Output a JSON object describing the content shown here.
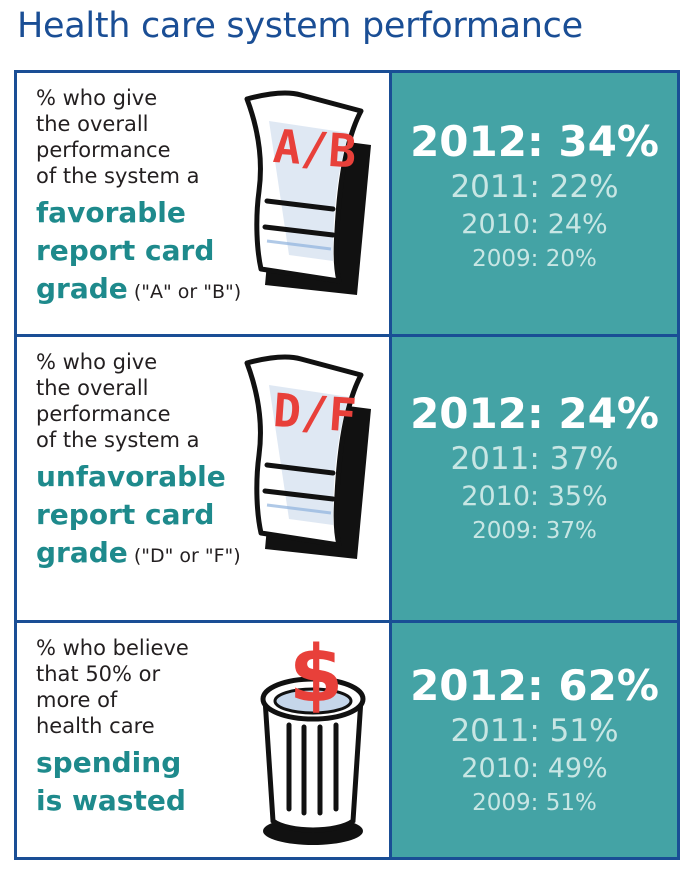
{
  "title": "Health care system performance",
  "chart_data": {
    "type": "table",
    "title": "Health care system performance",
    "rows": [
      {
        "intro": "% who give\nthe overall\nperformance\nof the system a",
        "emphasis": "favorable\nreport card\ngrade",
        "suffix": " (\"A\" or \"B\")",
        "icon_text": "A/B",
        "icon": "report-card-icon",
        "values": [
          {
            "year": "2012",
            "value": 34,
            "label": "2012: 34%"
          },
          {
            "year": "2011",
            "value": 22,
            "label": "2011: 22%"
          },
          {
            "year": "2010",
            "value": 24,
            "label": "2010: 24%"
          },
          {
            "year": "2009",
            "value": 20,
            "label": "2009: 20%"
          }
        ]
      },
      {
        "intro": "% who give\nthe overall\nperformance\nof the system a",
        "emphasis": "unfavorable\nreport card\ngrade",
        "suffix": " (\"D\" or \"F\")",
        "icon_text": "D/F",
        "icon": "report-card-icon",
        "values": [
          {
            "year": "2012",
            "value": 24,
            "label": "2012: 24%"
          },
          {
            "year": "2011",
            "value": 37,
            "label": "2011: 37%"
          },
          {
            "year": "2010",
            "value": 35,
            "label": "2010: 35%"
          },
          {
            "year": "2009",
            "value": 37,
            "label": "2009: 37%"
          }
        ]
      },
      {
        "intro": "% who believe\nthat 50% or\nmore of\nhealth care",
        "emphasis": "spending\nis wasted",
        "suffix": "",
        "icon_text": "$",
        "icon": "trash-can-dollar-icon",
        "values": [
          {
            "year": "2012",
            "value": 62,
            "label": "2012: 62%"
          },
          {
            "year": "2011",
            "value": 51,
            "label": "2011: 51%"
          },
          {
            "year": "2010",
            "value": 49,
            "label": "2010: 49%"
          },
          {
            "year": "2009",
            "value": 51,
            "label": "2009: 51%"
          }
        ]
      }
    ]
  },
  "colors": {
    "title_blue": "#1a4e95",
    "teal_panel": "#44a3a5",
    "teal_text": "#1e8a8c",
    "grade_red": "#e8403a"
  }
}
